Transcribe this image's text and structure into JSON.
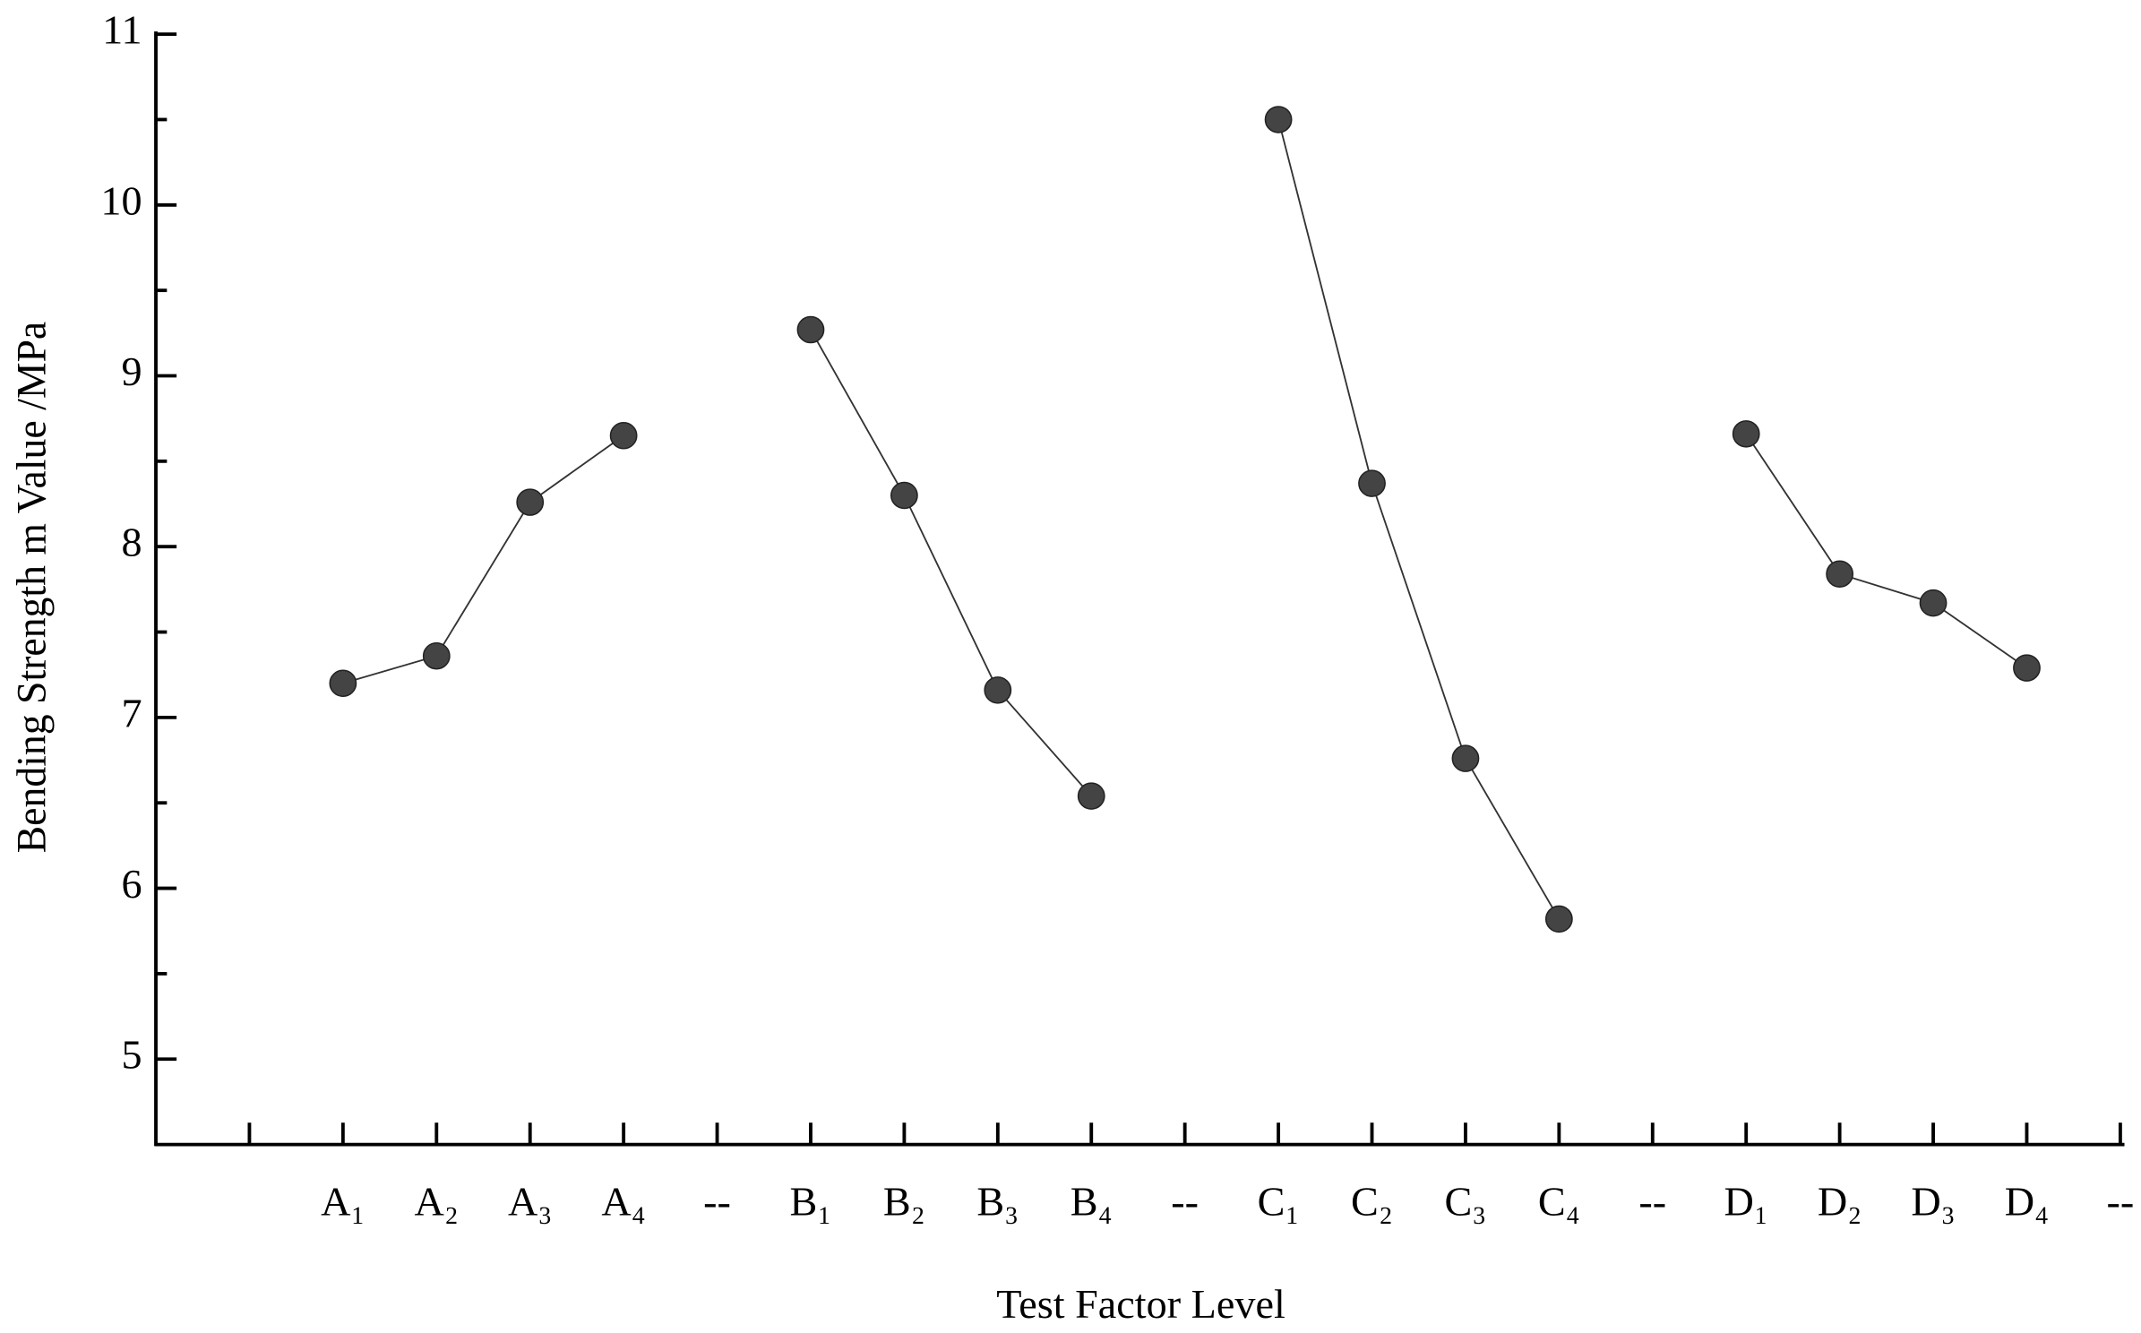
{
  "chart_data": {
    "type": "line",
    "xlabel": "Test Factor Level",
    "ylabel": "Bending Strength m Value /MPa",
    "categories": [
      null,
      "A₁",
      "A₂",
      "A₃",
      "A₄",
      "--",
      "B₁",
      "B₂",
      "B₃",
      "B₄",
      "--",
      "C₁",
      "C₂",
      "C₃",
      "C₄",
      "--",
      "D₁",
      "D₂",
      "D₃",
      "D₄",
      "--"
    ],
    "series": [
      {
        "color": "#444444",
        "values": [
          null,
          7.2,
          7.36,
          8.26,
          8.65,
          null,
          9.27,
          8.3,
          7.16,
          6.54,
          null,
          10.5,
          8.37,
          6.76,
          5.82,
          null,
          8.66,
          7.84,
          7.67,
          7.29,
          null
        ]
      }
    ],
    "ylim": [
      4.5,
      11
    ],
    "yticks": [
      5,
      6,
      7,
      8,
      9,
      10,
      11
    ]
  }
}
